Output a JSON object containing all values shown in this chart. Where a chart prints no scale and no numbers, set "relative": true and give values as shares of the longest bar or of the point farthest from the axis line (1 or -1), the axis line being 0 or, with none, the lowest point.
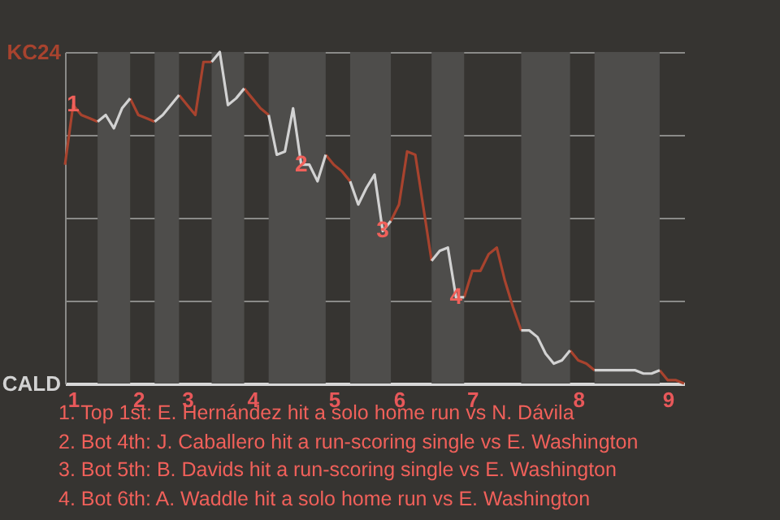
{
  "chart_data": {
    "type": "line",
    "relative": true,
    "categories": [
      null,
      "1",
      null,
      null,
      null,
      null,
      null,
      null,
      null,
      "2",
      null,
      null,
      null,
      null,
      null,
      "3",
      null,
      null,
      null,
      null,
      null,
      null,
      null,
      "4",
      null,
      null,
      null,
      null,
      null,
      null,
      null,
      null,
      null,
      "5",
      null,
      null,
      null,
      null,
      null,
      null,
      null,
      "6",
      null,
      null,
      null,
      null,
      null,
      null,
      null,
      null,
      "7",
      null,
      null,
      null,
      null,
      null,
      null,
      null,
      null,
      null,
      null,
      null,
      null,
      "8",
      null,
      null,
      null,
      null,
      null,
      null,
      null,
      null,
      null,
      null,
      "9",
      null,
      null
    ],
    "series": [
      {
        "color": "#a8432e",
        "values": [
          0.66,
          0.84,
          0.81,
          0.8,
          0.79,
          null,
          null,
          null,
          0.86,
          0.81,
          0.8,
          0.79,
          null,
          null,
          0.87,
          0.84,
          0.81,
          0.97,
          0.97,
          null,
          null,
          null,
          0.89,
          0.86,
          0.83,
          0.81,
          null,
          null,
          null,
          null,
          null,
          null,
          0.69,
          0.66,
          0.64,
          0.61,
          null,
          null,
          null,
          null,
          0.49,
          0.54,
          0.7,
          0.69,
          0.53,
          0.37,
          null,
          null,
          null,
          0.26,
          0.34,
          0.34,
          0.39,
          0.41,
          0.31,
          0.23,
          0.16,
          null,
          null,
          null,
          null,
          null,
          0.1,
          0.07,
          0.06,
          0.04,
          null,
          null,
          null,
          null,
          null,
          null,
          null,
          0.04,
          0.01,
          0.01,
          0
        ]
      },
      {
        "color": "#d2d2d2",
        "values": [
          null,
          null,
          null,
          null,
          0.79,
          0.81,
          0.77,
          0.83,
          0.86,
          null,
          null,
          0.79,
          0.81,
          0.84,
          0.87,
          null,
          null,
          null,
          0.97,
          1,
          0.84,
          0.86,
          0.89,
          null,
          null,
          0.81,
          0.69,
          0.7,
          0.83,
          0.66,
          0.66,
          0.61,
          0.69,
          null,
          null,
          0.61,
          0.54,
          0.59,
          0.63,
          0.46,
          0.49,
          null,
          null,
          null,
          null,
          0.37,
          0.4,
          0.41,
          0.26,
          0.26,
          null,
          null,
          null,
          null,
          null,
          null,
          0.16,
          0.16,
          0.14,
          0.09,
          0.06,
          0.07,
          0.1,
          null,
          null,
          0.04,
          0.04,
          0.04,
          0.04,
          0.04,
          0.04,
          0.03,
          0.03,
          0.04,
          null,
          null,
          null
        ]
      }
    ],
    "grid": "y",
    "annotations": [
      "KC24",
      "CALD",
      {
        "text": "1",
        "y": 0.84
      },
      {
        "text": "2",
        "y": 0.66
      },
      {
        "text": "3",
        "y": 0.46
      },
      {
        "text": "4",
        "y": 0.26
      },
      "1. Top 1st: E. Hernández hit a solo home run vs N. Dávila",
      "2. Bot 4th: J. Caballero hit a run-scoring single vs E. Washington",
      "3. Bot 5th: B. Davids hit a run-scoring single vs E. Washington",
      "4. Bot 6th: A. Waddle hit a solo home run vs E. Washington"
    ]
  }
}
